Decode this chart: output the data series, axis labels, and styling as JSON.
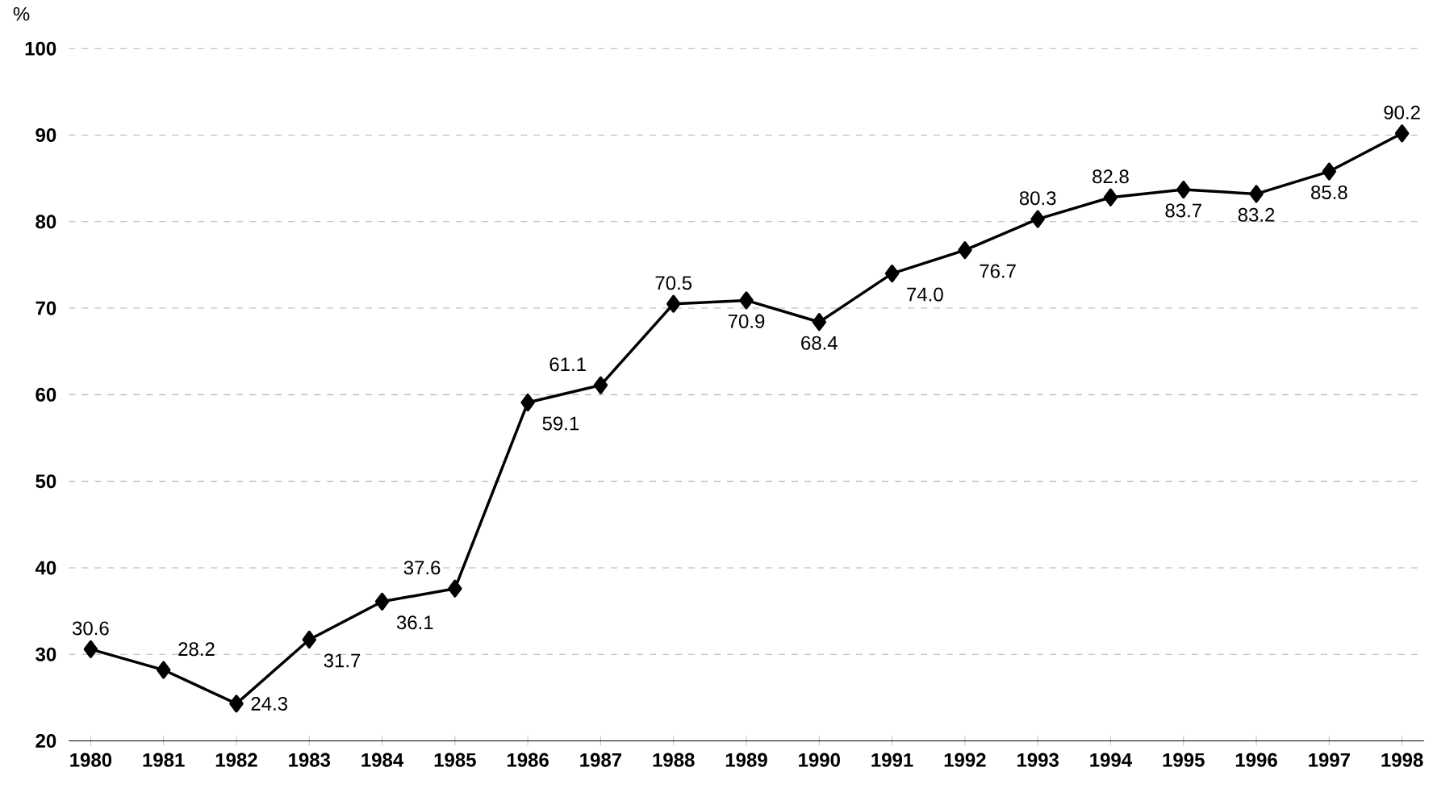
{
  "chart_data": {
    "type": "line",
    "ylabel": "%",
    "categories": [
      "1980",
      "1981",
      "1982",
      "1983",
      "1984",
      "1985",
      "1986",
      "1987",
      "1988",
      "1989",
      "1990",
      "1991",
      "1992",
      "1993",
      "1994",
      "1995",
      "1996",
      "1997",
      "1998"
    ],
    "values": [
      30.6,
      28.2,
      24.3,
      31.7,
      36.1,
      37.6,
      59.1,
      61.1,
      70.5,
      70.9,
      68.4,
      74.0,
      76.7,
      80.3,
      82.8,
      83.7,
      83.2,
      85.8,
      90.2
    ],
    "value_labels": [
      "30.6",
      "28.2",
      "24.3",
      "31.7",
      "36.1",
      "37.6",
      "59.1",
      "61.1",
      "70.5",
      "70.9",
      "68.4",
      "74.0",
      "76.7",
      "80.3",
      "82.8",
      "83.7",
      "83.2",
      "85.8",
      "90.2"
    ],
    "color": "#000000",
    "marker": "diamond",
    "line_style": "solid",
    "grid": "y",
    "ylim": [
      20,
      100
    ],
    "yticks": [
      20,
      30,
      40,
      50,
      60,
      70,
      80,
      90,
      100
    ]
  }
}
